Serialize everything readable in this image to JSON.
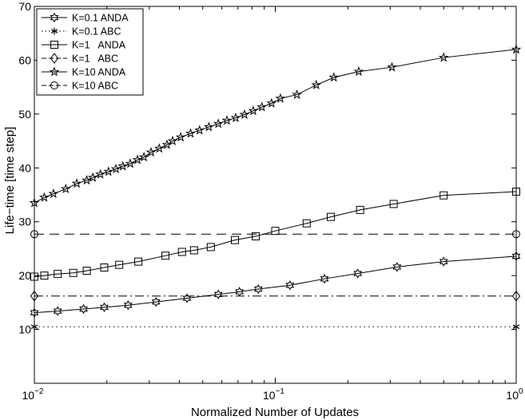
{
  "chart_data": {
    "type": "line",
    "title": "",
    "xlabel": "Normalized Number of Updates",
    "ylabel": "Life−time [time step]",
    "xscale": "log",
    "xlim": [
      0.01,
      1
    ],
    "ylim": [
      0,
      70
    ],
    "grid": false,
    "legend_position": "top-left",
    "x_tick_labels": [
      {
        "base": "10",
        "exp": "−2",
        "value": 0.01
      },
      {
        "base": "10",
        "exp": "−1",
        "value": 0.1
      },
      {
        "base": "10",
        "exp": "0",
        "value": 1
      }
    ],
    "y_tick_labels": [
      "10",
      "20",
      "30",
      "40",
      "50",
      "60",
      "70"
    ],
    "y_tick_values": [
      10,
      20,
      30,
      40,
      50,
      60,
      70
    ],
    "series": [
      {
        "name": "K=0.1 ANDA",
        "line": "solid",
        "marker": "hexagram",
        "x": [
          0.01,
          0.0125,
          0.016,
          0.0195,
          0.0245,
          0.032,
          0.043,
          0.058,
          0.071,
          0.085,
          0.115,
          0.16,
          0.22,
          0.32,
          0.5,
          1.0
        ],
        "y": [
          13.1,
          13.4,
          13.8,
          14.1,
          14.5,
          15.1,
          15.8,
          16.5,
          17.0,
          17.5,
          18.2,
          19.4,
          20.4,
          21.6,
          22.6,
          23.6
        ]
      },
      {
        "name": "K=0.1 ABC",
        "line": "dotted",
        "marker": "asterisk",
        "x": [
          0.01,
          1.0
        ],
        "y": [
          10.5,
          10.5
        ]
      },
      {
        "name": "K=1   ANDA",
        "line": "solid",
        "marker": "square",
        "x": [
          0.01,
          0.011,
          0.0125,
          0.0145,
          0.0165,
          0.0195,
          0.0225,
          0.027,
          0.035,
          0.041,
          0.046,
          0.054,
          0.068,
          0.083,
          0.1,
          0.135,
          0.17,
          0.225,
          0.31,
          0.5,
          1.0
        ],
        "y": [
          19.8,
          20.0,
          20.3,
          20.5,
          20.9,
          21.5,
          22.0,
          22.6,
          23.7,
          24.4,
          24.7,
          25.3,
          26.6,
          27.3,
          28.3,
          29.7,
          30.9,
          32.2,
          33.3,
          34.9,
          35.6
        ]
      },
      {
        "name": "K=1   ABC",
        "line": "dashdot",
        "marker": "diamond",
        "x": [
          0.01,
          1.0
        ],
        "y": [
          16.2,
          16.2
        ]
      },
      {
        "name": "K=10 ANDA",
        "line": "solid",
        "marker": "pentagram",
        "x": [
          0.01,
          0.011,
          0.012,
          0.0135,
          0.015,
          0.0165,
          0.0175,
          0.0188,
          0.0203,
          0.0218,
          0.0233,
          0.025,
          0.0268,
          0.0285,
          0.0305,
          0.033,
          0.0355,
          0.0375,
          0.0405,
          0.0445,
          0.0485,
          0.053,
          0.058,
          0.063,
          0.0685,
          0.0745,
          0.081,
          0.088,
          0.0965,
          0.105,
          0.123,
          0.148,
          0.175,
          0.222,
          0.305,
          0.5,
          1.0
        ],
        "y": [
          33.5,
          34.5,
          35.2,
          36.1,
          37.1,
          37.7,
          38.2,
          38.8,
          39.3,
          39.8,
          40.3,
          40.8,
          41.5,
          42.0,
          42.9,
          43.6,
          44.3,
          45.0,
          45.7,
          46.4,
          47.0,
          47.6,
          48.2,
          48.8,
          49.3,
          49.9,
          50.6,
          51.3,
          52.0,
          52.9,
          53.6,
          55.4,
          56.8,
          57.9,
          58.7,
          60.5,
          62.0
        ]
      },
      {
        "name": "K=10 ABC",
        "line": "dashed",
        "marker": "circle",
        "x": [
          0.01,
          1.0
        ],
        "y": [
          27.7,
          27.7
        ]
      }
    ]
  }
}
